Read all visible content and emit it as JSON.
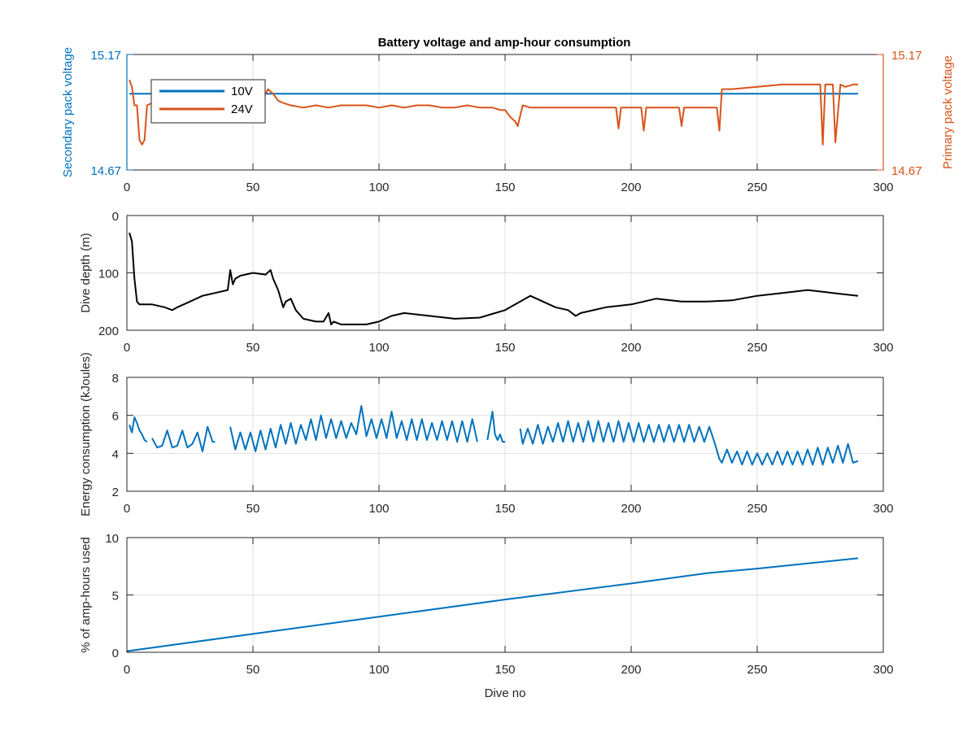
{
  "figure": {
    "title": "Battery voltage and amp-hour consumption",
    "xlabel": "Dive no"
  },
  "colors": {
    "blue": "#0072BD",
    "orange": "#D95319",
    "black": "#000000",
    "grid": "#dfdfdf",
    "axis": "#262626"
  },
  "chart_data": [
    {
      "type": "line",
      "title": "Battery voltage and amp-hour consumption",
      "xlabel": "",
      "xlim": [
        0,
        300
      ],
      "xticks": [
        "0",
        "50",
        "100",
        "150",
        "200",
        "250",
        "300"
      ],
      "ylabel_left": "Secondary pack voltage",
      "ylabel_right": "Primary pack voltage",
      "ylim": [
        14.67,
        15.17
      ],
      "yticks_left": [
        "14.67",
        "15.17"
      ],
      "yticks_right": [
        "14.67",
        "15.17"
      ],
      "grid": true,
      "legend": {
        "placement": "top-left",
        "entries": [
          "10V",
          "24V"
        ]
      },
      "series": [
        {
          "name": "10V",
          "axis": "left",
          "color": "#0072BD",
          "x": [
            1,
            290
          ],
          "y": [
            15.0,
            15.0
          ]
        },
        {
          "name": "24V",
          "axis": "right",
          "color": "#D95319",
          "x": [
            1,
            2,
            3,
            4,
            5,
            6,
            7,
            8,
            10,
            15,
            20,
            30,
            40,
            50,
            54,
            56,
            58,
            60,
            62,
            65,
            70,
            75,
            80,
            85,
            90,
            95,
            100,
            105,
            110,
            115,
            120,
            125,
            130,
            135,
            140,
            145,
            148,
            150,
            152,
            154,
            155,
            157,
            160,
            170,
            180,
            190,
            194,
            195,
            196,
            200,
            204,
            205,
            206,
            210,
            219,
            220,
            221,
            225,
            234,
            235,
            236,
            240,
            250,
            260,
            270,
            274,
            275,
            276,
            277,
            279,
            280,
            281,
            283,
            285,
            288,
            290
          ],
          "y": [
            15.06,
            15.03,
            14.95,
            14.95,
            14.8,
            14.78,
            14.8,
            14.95,
            14.96,
            14.96,
            14.96,
            14.96,
            14.97,
            14.97,
            14.98,
            15.02,
            15.0,
            14.97,
            14.96,
            14.95,
            14.94,
            14.95,
            14.94,
            14.95,
            14.95,
            14.95,
            14.94,
            14.95,
            14.94,
            14.95,
            14.95,
            14.94,
            14.94,
            14.95,
            14.94,
            14.94,
            14.93,
            14.93,
            14.9,
            14.88,
            14.86,
            14.95,
            14.94,
            14.94,
            14.94,
            14.94,
            14.94,
            14.85,
            14.94,
            14.94,
            14.94,
            14.84,
            14.94,
            14.94,
            14.94,
            14.86,
            14.94,
            14.94,
            14.94,
            14.84,
            15.02,
            15.02,
            15.03,
            15.04,
            15.04,
            15.04,
            15.04,
            14.78,
            15.04,
            15.04,
            15.04,
            14.79,
            15.04,
            15.03,
            15.04,
            15.04
          ]
        }
      ]
    },
    {
      "type": "line",
      "xlim": [
        0,
        300
      ],
      "xticks": [
        "0",
        "50",
        "100",
        "150",
        "200",
        "250",
        "300"
      ],
      "ylabel": "Dive depth (m)",
      "ylim": [
        0,
        200
      ],
      "y_reversed": true,
      "yticks": [
        "0",
        "100",
        "200"
      ],
      "grid": true,
      "series": [
        {
          "color": "#000000",
          "x": [
            1,
            2,
            3,
            4,
            5,
            8,
            10,
            15,
            18,
            20,
            25,
            30,
            35,
            40,
            41,
            42,
            43,
            45,
            50,
            55,
            57,
            58,
            60,
            62,
            63,
            65,
            67,
            70,
            75,
            78,
            80,
            81,
            82,
            85,
            90,
            95,
            100,
            105,
            110,
            120,
            130,
            140,
            150,
            160,
            170,
            175,
            178,
            180,
            190,
            200,
            210,
            220,
            230,
            240,
            250,
            260,
            270,
            280,
            290
          ],
          "y": [
            30,
            45,
            110,
            150,
            155,
            155,
            155,
            160,
            165,
            160,
            150,
            140,
            135,
            130,
            95,
            120,
            110,
            105,
            100,
            103,
            95,
            110,
            130,
            160,
            150,
            145,
            165,
            180,
            185,
            185,
            170,
            190,
            185,
            190,
            190,
            190,
            185,
            175,
            170,
            175,
            180,
            178,
            165,
            140,
            160,
            165,
            175,
            170,
            160,
            155,
            145,
            150,
            150,
            148,
            140,
            135,
            130,
            135,
            140
          ]
        }
      ]
    },
    {
      "type": "line",
      "xlim": [
        0,
        300
      ],
      "xticks": [
        "0",
        "50",
        "100",
        "150",
        "200",
        "250",
        "300"
      ],
      "ylabel": "Energy consumption (kJoules)",
      "ylim": [
        2,
        8
      ],
      "yticks": [
        "2",
        "4",
        "6",
        "8"
      ],
      "grid": true,
      "series": [
        {
          "color": "#0072BD",
          "segments": [
            {
              "x": [
                1,
                2,
                3,
                4,
                5,
                6,
                7,
                8
              ],
              "y": [
                5.5,
                5.1,
                5.9,
                5.6,
                5.2,
                5.0,
                4.7,
                4.6
              ]
            },
            {
              "x": [
                10,
                12,
                14,
                16,
                18,
                20,
                22,
                24,
                26,
                28,
                30,
                32,
                34,
                35
              ],
              "y": [
                4.8,
                4.3,
                4.4,
                5.2,
                4.3,
                4.4,
                5.2,
                4.3,
                4.5,
                5.1,
                4.1,
                5.4,
                4.6,
                4.6
              ]
            },
            {
              "x": [
                41,
                43,
                45,
                47,
                49,
                51,
                53,
                55,
                57,
                59,
                61,
                63,
                65,
                67,
                69,
                71,
                73,
                75,
                77,
                79,
                81,
                83,
                85,
                87,
                89,
                91,
                93,
                95,
                97,
                99,
                101,
                103,
                105,
                107,
                109,
                111,
                113,
                115,
                117,
                119,
                121,
                123,
                125,
                127,
                129,
                131,
                133,
                135,
                137,
                139
              ],
              "y": [
                5.4,
                4.2,
                5.1,
                4.2,
                5.1,
                4.1,
                5.2,
                4.2,
                5.3,
                4.3,
                5.5,
                4.5,
                5.6,
                4.5,
                5.5,
                4.7,
                5.8,
                4.7,
                6.0,
                4.8,
                5.8,
                4.8,
                5.7,
                4.8,
                5.6,
                5.0,
                6.5,
                4.9,
                5.8,
                4.8,
                5.8,
                4.8,
                6.2,
                4.8,
                5.7,
                4.7,
                5.8,
                4.7,
                5.8,
                4.7,
                5.6,
                4.7,
                5.7,
                4.7,
                5.7,
                4.6,
                5.7,
                4.6,
                5.8,
                4.6
              ]
            },
            {
              "x": [
                143,
                145,
                146,
                147,
                148,
                149,
                150
              ],
              "y": [
                4.7,
                6.2,
                5.0,
                4.7,
                5.0,
                4.6,
                4.6
              ]
            },
            {
              "x": [
                156,
                157,
                159,
                161,
                163,
                165,
                167,
                169,
                171,
                173,
                175,
                177,
                179,
                181,
                183,
                185,
                187,
                189,
                191,
                193,
                195,
                197,
                199,
                201,
                203,
                205,
                207,
                209,
                211,
                213,
                215,
                217,
                219,
                221,
                223,
                225,
                227,
                229,
                231,
                233,
                235,
                236,
                238,
                240,
                242,
                244,
                246,
                248,
                250,
                252,
                254,
                256,
                258,
                260,
                262,
                264,
                266,
                268,
                270,
                272,
                274,
                276,
                278,
                280,
                282,
                284,
                286,
                288,
                290
              ],
              "y": [
                5.3,
                4.5,
                5.3,
                4.5,
                5.5,
                4.5,
                5.4,
                4.6,
                5.6,
                4.6,
                5.7,
                4.6,
                5.6,
                4.6,
                5.7,
                4.6,
                5.7,
                4.6,
                5.6,
                4.6,
                5.7,
                4.6,
                5.6,
                4.6,
                5.6,
                4.6,
                5.5,
                4.6,
                5.5,
                4.6,
                5.5,
                4.6,
                5.5,
                4.6,
                5.5,
                4.6,
                5.4,
                4.6,
                5.4,
                4.6,
                3.7,
                3.5,
                4.2,
                3.5,
                4.1,
                3.4,
                4.1,
                3.4,
                4.0,
                3.4,
                4.0,
                3.4,
                4.1,
                3.4,
                4.1,
                3.4,
                4.1,
                3.4,
                4.2,
                3.4,
                4.3,
                3.4,
                4.3,
                3.5,
                4.4,
                3.5,
                4.5,
                3.5,
                3.6
              ]
            }
          ]
        }
      ]
    },
    {
      "type": "line",
      "xlim": [
        0,
        300
      ],
      "xticks": [
        "0",
        "50",
        "100",
        "150",
        "200",
        "250",
        "300"
      ],
      "xlabel": "Dive no",
      "ylabel": "% of amp-hours used",
      "ylim": [
        0,
        10
      ],
      "yticks": [
        "0",
        "5",
        "10"
      ],
      "grid": true,
      "series": [
        {
          "color": "#0072BD",
          "x": [
            0,
            50,
            100,
            150,
            200,
            230,
            250,
            290
          ],
          "y": [
            0.1,
            1.6,
            3.1,
            4.6,
            6.0,
            6.9,
            7.3,
            8.2
          ]
        }
      ]
    }
  ]
}
